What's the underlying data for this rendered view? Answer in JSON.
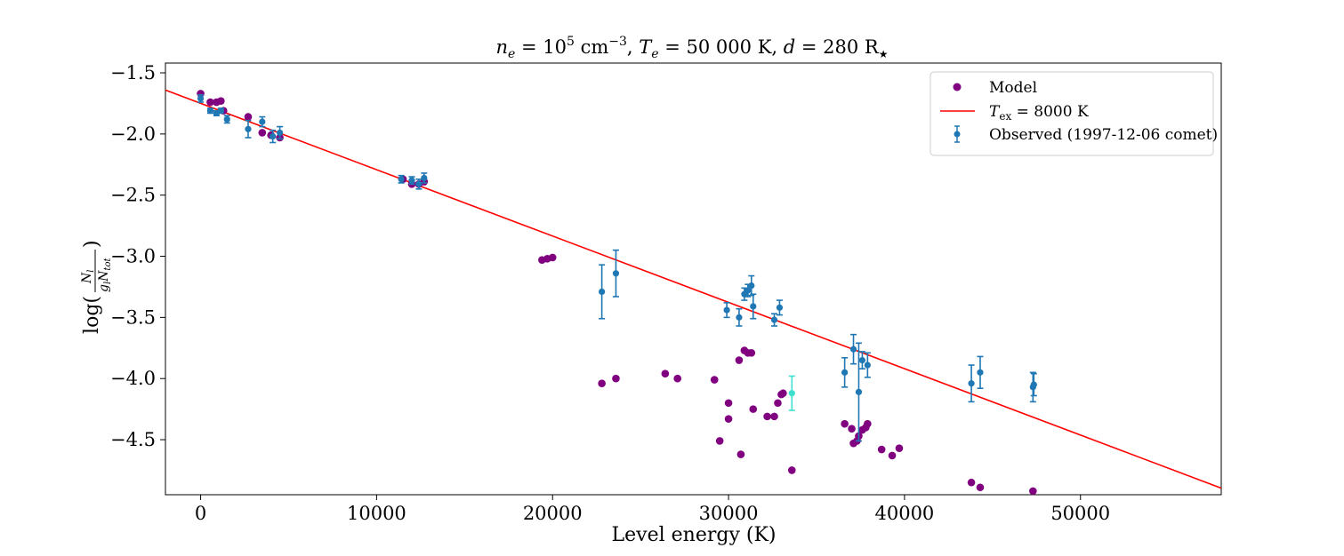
{
  "chart_data": {
    "type": "scatter",
    "title": "n_e = 10^5 cm^-3,   T_e = 50 000 K,   d = 280 R★",
    "title_parts": {
      "ne": "n",
      "ne_sub": "e",
      "ne_val": " = 10",
      "ne_exp": "5",
      "ne_unit": " cm",
      "ne_unit_exp": "−3",
      "te": "T",
      "te_sub": "e",
      "te_val": " = 50 000 K,",
      "d": "d",
      "d_val": " = 280 R",
      "star": "★"
    },
    "xlabel": "Level energy (K)",
    "ylabel": "log(N_l / (g_l N_tot))",
    "ylabel_parts": {
      "prefix": "log(",
      "num": "N",
      "num_sub": "l",
      "den": "g",
      "den_sub": "l",
      "den2": "N",
      "den2_sub": "tot",
      "suffix": ")"
    },
    "xlim": [
      -2000,
      58000
    ],
    "ylim": [
      -4.95,
      -1.42
    ],
    "xticks": [
      0,
      10000,
      20000,
      30000,
      40000,
      50000
    ],
    "xtick_labels": [
      "0",
      "10000",
      "20000",
      "30000",
      "40000",
      "50000"
    ],
    "yticks": [
      -4.5,
      -4.0,
      -3.5,
      -3.0,
      -2.5,
      -2.0,
      -1.5
    ],
    "ytick_labels": [
      "−4.5",
      "−4.0",
      "−3.5",
      "−3.0",
      "−2.5",
      "−2.0",
      "−1.5"
    ],
    "legend_position": "top-right",
    "series": [
      {
        "name": "Model",
        "kind": "scatter",
        "color": "#800080",
        "points": [
          [
            0,
            -1.67
          ],
          [
            550,
            -1.74
          ],
          [
            900,
            -1.74
          ],
          [
            1150,
            -1.73
          ],
          [
            1300,
            -1.81
          ],
          [
            2700,
            -1.86
          ],
          [
            3500,
            -1.99
          ],
          [
            4000,
            -2.01
          ],
          [
            4500,
            -2.03
          ],
          [
            11500,
            -2.37
          ],
          [
            12000,
            -2.41
          ],
          [
            12400,
            -2.41
          ],
          [
            12700,
            -2.39
          ],
          [
            19400,
            -3.03
          ],
          [
            19700,
            -3.02
          ],
          [
            20000,
            -3.01
          ],
          [
            22800,
            -4.04
          ],
          [
            23600,
            -4.0
          ],
          [
            26400,
            -3.96
          ],
          [
            27100,
            -4.0
          ],
          [
            29200,
            -4.01
          ],
          [
            29500,
            -4.51
          ],
          [
            30000,
            -4.2
          ],
          [
            30000,
            -4.33
          ],
          [
            30600,
            -3.85
          ],
          [
            30700,
            -4.62
          ],
          [
            30900,
            -3.77
          ],
          [
            31100,
            -3.79
          ],
          [
            31300,
            -3.79
          ],
          [
            31400,
            -4.25
          ],
          [
            32200,
            -4.31
          ],
          [
            32600,
            -4.31
          ],
          [
            32800,
            -4.2
          ],
          [
            33000,
            -4.13
          ],
          [
            33100,
            -4.12
          ],
          [
            33600,
            -4.75
          ],
          [
            36600,
            -4.37
          ],
          [
            37000,
            -4.41
          ],
          [
            37100,
            -4.53
          ],
          [
            37300,
            -4.51
          ],
          [
            37400,
            -4.47
          ],
          [
            37600,
            -4.42
          ],
          [
            37800,
            -4.4
          ],
          [
            37900,
            -4.37
          ],
          [
            38700,
            -4.58
          ],
          [
            39300,
            -4.63
          ],
          [
            39700,
            -4.57
          ],
          [
            43800,
            -4.85
          ],
          [
            44300,
            -4.89
          ],
          [
            47300,
            -4.92
          ]
        ]
      },
      {
        "name": "T_ex = 8000 K",
        "label_parts": {
          "t": "T",
          "sub": "ex",
          "rest": " = 8000 K"
        },
        "kind": "line",
        "color": "#ff0000",
        "x": [
          -2000,
          58000
        ],
        "y": [
          -1.641,
          -4.896
        ]
      },
      {
        "name": "Observed (1997-12-06 comet)",
        "kind": "errorbar",
        "color": "#1f77b4",
        "points": [
          {
            "x": 0,
            "y": -1.71,
            "err": 0.03
          },
          {
            "x": 550,
            "y": -1.81,
            "err": 0.02
          },
          {
            "x": 900,
            "y": -1.83,
            "err": 0.02
          },
          {
            "x": 1150,
            "y": -1.81,
            "err": 0.02
          },
          {
            "x": 1500,
            "y": -1.88,
            "err": 0.03
          },
          {
            "x": 2700,
            "y": -1.96,
            "err": 0.07
          },
          {
            "x": 3500,
            "y": -1.9,
            "err": 0.04
          },
          {
            "x": 4100,
            "y": -2.02,
            "err": 0.05
          },
          {
            "x": 4500,
            "y": -1.99,
            "err": 0.05
          },
          {
            "x": 11400,
            "y": -2.37,
            "err": 0.03
          },
          {
            "x": 12000,
            "y": -2.38,
            "err": 0.03
          },
          {
            "x": 12400,
            "y": -2.41,
            "err": 0.04
          },
          {
            "x": 12700,
            "y": -2.36,
            "err": 0.04
          },
          {
            "x": 22800,
            "y": -3.29,
            "err": 0.22
          },
          {
            "x": 23600,
            "y": -3.14,
            "err": 0.19
          },
          {
            "x": 29900,
            "y": -3.44,
            "err": 0.06
          },
          {
            "x": 30600,
            "y": -3.5,
            "err": 0.07
          },
          {
            "x": 30900,
            "y": -3.31,
            "err": 0.05
          },
          {
            "x": 31100,
            "y": -3.28,
            "err": 0.05
          },
          {
            "x": 31300,
            "y": -3.24,
            "err": 0.08
          },
          {
            "x": 31400,
            "y": -3.41,
            "err": 0.1
          },
          {
            "x": 32600,
            "y": -3.52,
            "err": 0.05
          },
          {
            "x": 32900,
            "y": -3.42,
            "err": 0.06
          },
          {
            "x": 33600,
            "y": -4.12,
            "err": 0.14,
            "color": "#40e0d0"
          },
          {
            "x": 36600,
            "y": -3.95,
            "err": 0.12
          },
          {
            "x": 37100,
            "y": -3.76,
            "err": 0.12
          },
          {
            "x": 37400,
            "y": -4.11,
            "err": 0.4
          },
          {
            "x": 37600,
            "y": -3.85,
            "err": 0.07
          },
          {
            "x": 37900,
            "y": -3.89,
            "err": 0.1
          },
          {
            "x": 43800,
            "y": -4.04,
            "err": 0.15
          },
          {
            "x": 44300,
            "y": -3.95,
            "err": 0.13
          },
          {
            "x": 47300,
            "y": -4.07,
            "err": 0.12
          },
          {
            "x": 47350,
            "y": -4.05,
            "err": 0.09
          }
        ]
      }
    ]
  }
}
